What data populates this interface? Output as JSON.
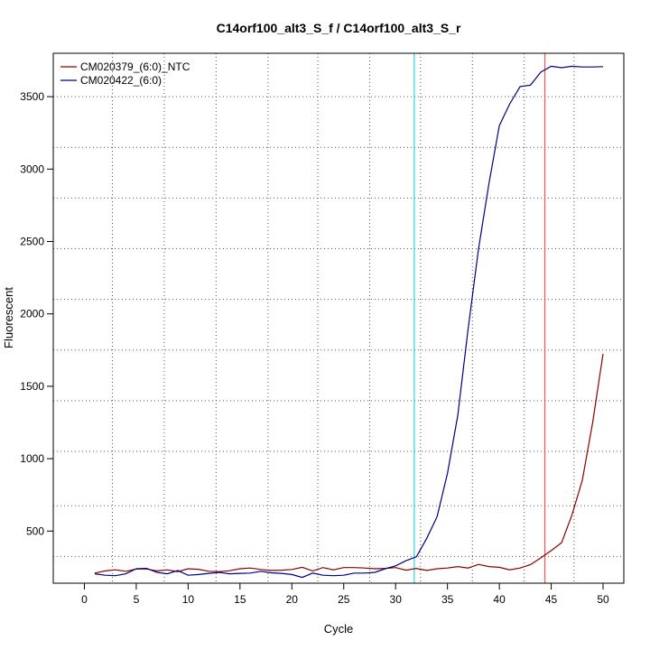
{
  "chart_data": {
    "type": "line",
    "title": "C14orf100_alt3_S_f / C14orf100_alt3_S_r",
    "xlabel": "Cycle",
    "ylabel": "Fluorescent",
    "xlim": [
      -3,
      52
    ],
    "ylim": [
      140,
      3800
    ],
    "x_ticks": [
      0,
      5,
      10,
      15,
      20,
      25,
      30,
      35,
      40,
      45,
      50
    ],
    "y_ticks": [
      500,
      1000,
      1500,
      2000,
      2500,
      3000,
      3500
    ],
    "grid": true,
    "grid_x": [
      2.7,
      7.7,
      12.7,
      17.7,
      22.5,
      27.5,
      32.4,
      37.4,
      42.4,
      47.2
    ],
    "grid_y": [
      325,
      675,
      1050,
      1400,
      1750,
      2100,
      2450,
      2800,
      3150,
      3500
    ],
    "legend_position": "top-left",
    "threshold_lines": [
      {
        "x": 31.8,
        "color": "#00d0d8"
      },
      {
        "x": 44.4,
        "color": "#ff3030"
      }
    ],
    "x": [
      1,
      2,
      3,
      4,
      5,
      6,
      7,
      8,
      9,
      10,
      11,
      12,
      13,
      14,
      15,
      16,
      17,
      18,
      19,
      20,
      21,
      22,
      23,
      24,
      25,
      26,
      27,
      28,
      29,
      30,
      31,
      32,
      33,
      34,
      35,
      36,
      37,
      38,
      39,
      40,
      41,
      42,
      43,
      44,
      45,
      46,
      47,
      48,
      49,
      50
    ],
    "series": [
      {
        "name": "CM020379_(6:0)_NTC",
        "color": "#8b0000",
        "values": [
          210,
          225,
          232,
          222,
          238,
          238,
          225,
          232,
          220,
          240,
          236,
          222,
          220,
          226,
          240,
          245,
          235,
          228,
          230,
          235,
          250,
          225,
          248,
          232,
          248,
          248,
          245,
          240,
          242,
          248,
          230,
          242,
          228,
          240,
          245,
          255,
          245,
          270,
          255,
          250,
          232,
          245,
          268,
          315,
          365,
          420,
          610,
          850,
          1250,
          1725
        ]
      },
      {
        "name": "CM020422_(6:0)",
        "color": "#000080",
        "values": [
          205,
          195,
          192,
          205,
          240,
          242,
          215,
          205,
          228,
          195,
          200,
          208,
          215,
          205,
          208,
          210,
          222,
          212,
          208,
          200,
          180,
          210,
          195,
          192,
          195,
          210,
          210,
          215,
          240,
          260,
          295,
          322,
          450,
          600,
          900,
          1300,
          1900,
          2450,
          2900,
          3300,
          3450,
          3570,
          3580,
          3670,
          3710,
          3700,
          3710,
          3705,
          3705,
          3708
        ]
      }
    ]
  }
}
